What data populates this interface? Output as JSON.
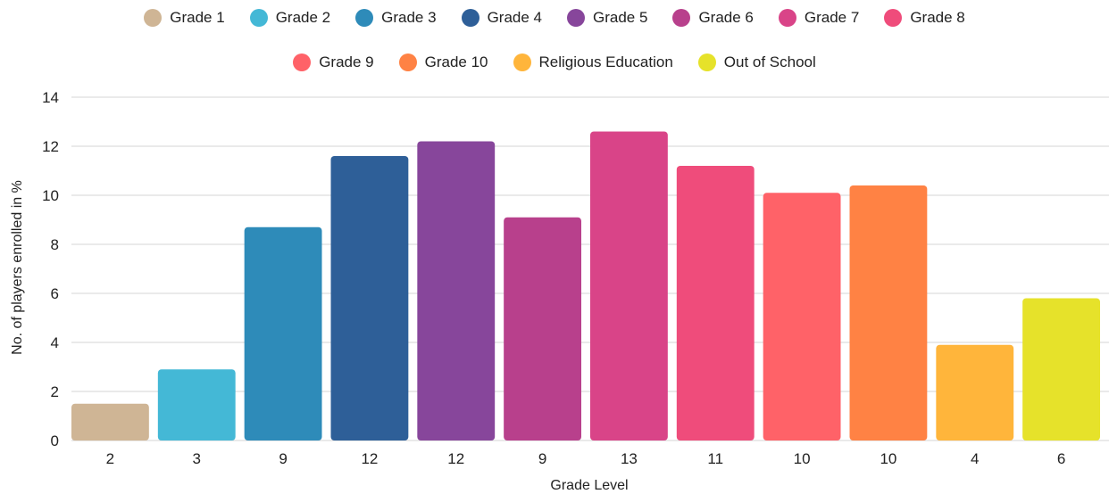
{
  "chart_data": {
    "type": "bar",
    "title": "",
    "xlabel": "Grade Level",
    "ylabel": "No. of players enrolled in %",
    "ylim": [
      0,
      14
    ],
    "yticks": [
      0,
      2,
      4,
      6,
      8,
      10,
      12,
      14
    ],
    "grid": true,
    "legend_position": "top",
    "categories": [
      "Grade 1",
      "Grade 2",
      "Grade 3",
      "Grade 4",
      "Grade 5",
      "Grade 6",
      "Grade 7",
      "Grade 8",
      "Grade 9",
      "Grade 10",
      "Religious Education",
      "Out of School"
    ],
    "x_tick_labels": [
      "2",
      "3",
      "9",
      "12",
      "12",
      "9",
      "13",
      "11",
      "10",
      "10",
      "4",
      "6"
    ],
    "values": [
      1.5,
      2.9,
      8.7,
      11.6,
      12.2,
      9.1,
      12.6,
      11.2,
      10.1,
      10.4,
      3.9,
      5.8
    ],
    "colors": [
      "#cfb595",
      "#44b8d6",
      "#2e8bb9",
      "#2e5f98",
      "#87469b",
      "#b8408c",
      "#d94488",
      "#ef4c7b",
      "#ff6268",
      "#ff8244",
      "#ffb53b",
      "#e6e22a"
    ]
  }
}
